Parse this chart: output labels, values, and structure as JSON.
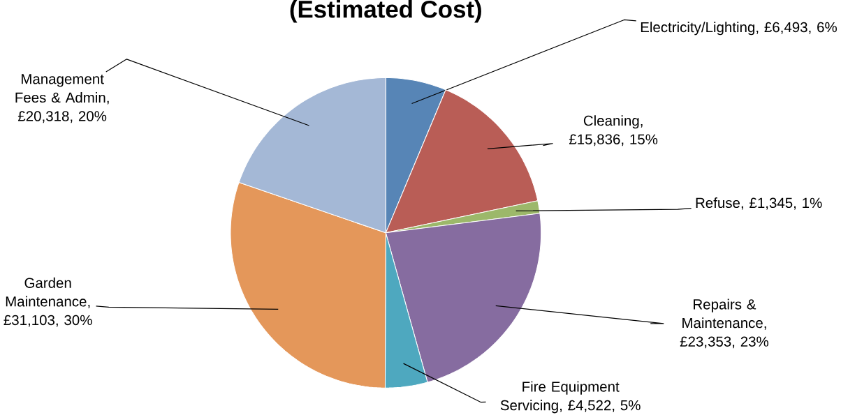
{
  "chart_data": {
    "type": "pie",
    "title": "(Estimated Cost)",
    "categories": [
      "Electricity/Lighting",
      "Cleaning",
      "Refuse",
      "Repairs & Maintenance",
      "Fire Equipment Servicing",
      "Garden Maintenance",
      "Management Fees & Admin"
    ],
    "values": [
      6493,
      15836,
      1345,
      23353,
      4522,
      31103,
      20318
    ],
    "value_labels": [
      ", £6,493, 6%",
      ", £15,836, 15%",
      ", £1,345, 1%",
      ", £23,353, 23%",
      ", £4,522, 5%",
      ", £31,103, 30%",
      ", £20,318, 20%"
    ],
    "colors": [
      "#5785b6",
      "#b95d56",
      "#9cb86a",
      "#866ca0",
      "#4ea8bf",
      "#e4975a",
      "#a4b8d6"
    ]
  }
}
